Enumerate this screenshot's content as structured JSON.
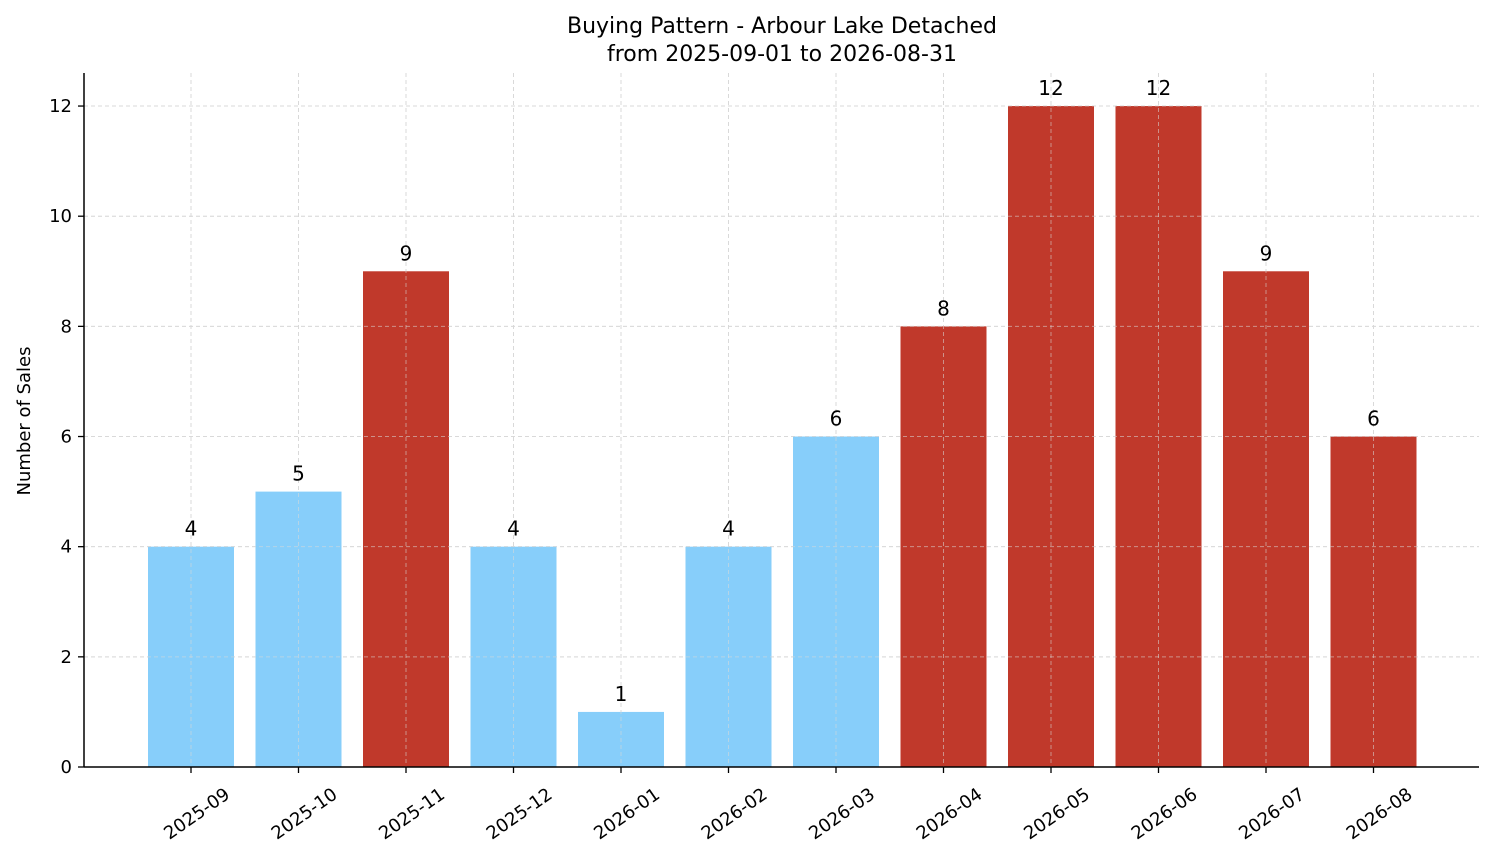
{
  "chart_data": {
    "type": "bar",
    "title": "Buying Pattern - Arbour Lake Detached",
    "subtitle": "from 2025-09-01 to 2026-08-31",
    "xlabel": "",
    "ylabel": "Number of Sales",
    "categories": [
      "2025-09",
      "2025-10",
      "2025-11",
      "2025-12",
      "2026-01",
      "2026-02",
      "2026-03",
      "2026-04",
      "2026-05",
      "2026-06",
      "2026-07",
      "2026-08"
    ],
    "values": [
      4,
      5,
      9,
      4,
      1,
      4,
      6,
      8,
      12,
      12,
      9,
      6
    ],
    "bar_colors": [
      "#87CEFA",
      "#87CEFA",
      "#C0392B",
      "#87CEFA",
      "#87CEFA",
      "#87CEFA",
      "#87CEFA",
      "#C0392B",
      "#C0392B",
      "#C0392B",
      "#C0392B",
      "#C0392B"
    ],
    "data_labels": [
      "4",
      "5",
      "9",
      "4",
      "1",
      "4",
      "6",
      "8",
      "12",
      "12",
      "9",
      "6"
    ],
    "yticks": [
      "0",
      "2",
      "4",
      "6",
      "8",
      "10",
      "12"
    ],
    "ylim": [
      0,
      12.6
    ],
    "grid": true,
    "grid_color": "#d9d9d9",
    "legend": "none"
  }
}
